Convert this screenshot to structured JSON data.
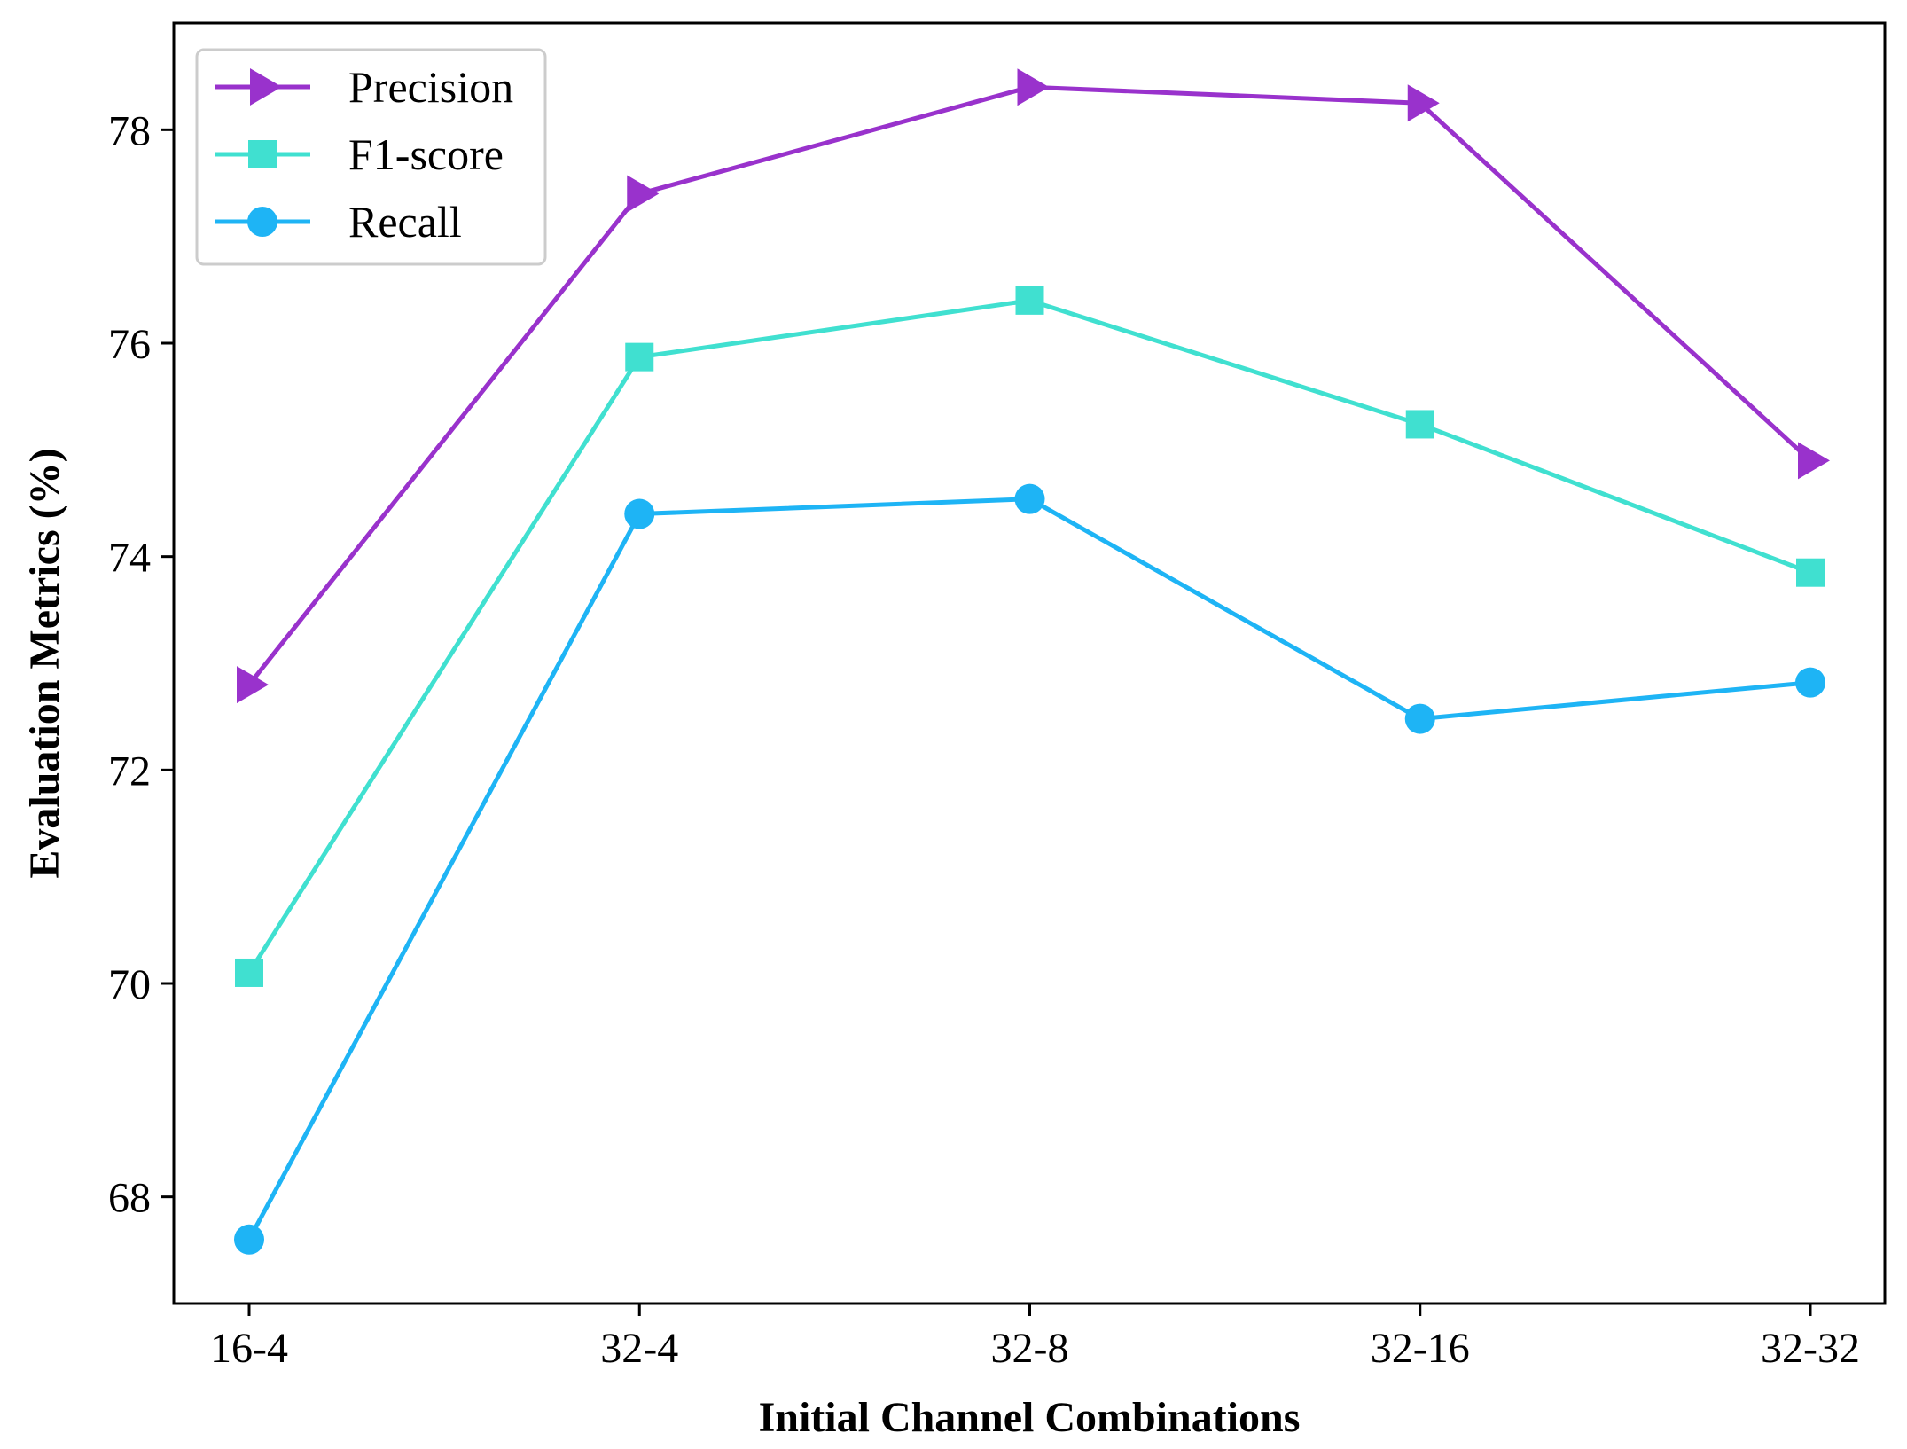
{
  "chart_data": {
    "type": "line",
    "title": "",
    "xlabel": "Initial Channel Combinations",
    "ylabel": "Evaluation Metrics (%)",
    "categories": [
      "16-4",
      "32-4",
      "32-8",
      "32-16",
      "32-32"
    ],
    "ylim": [
      67.0,
      79.0
    ],
    "yticks": [
      68,
      70,
      72,
      74,
      76,
      78
    ],
    "grid": false,
    "legend": {
      "position": "top-left"
    },
    "series": [
      {
        "name": "Precision",
        "marker": "triangle-right",
        "color": "#9932CC",
        "values": [
          72.8,
          77.4,
          78.4,
          78.25,
          74.9
        ]
      },
      {
        "name": "F1-score",
        "marker": "square",
        "color": "#40E0D0",
        "values": [
          70.1,
          75.87,
          76.4,
          75.24,
          73.85
        ]
      },
      {
        "name": "Recall",
        "marker": "circle",
        "color": "#1EB4F5",
        "values": [
          67.6,
          74.4,
          74.54,
          72.48,
          72.82
        ]
      }
    ]
  }
}
